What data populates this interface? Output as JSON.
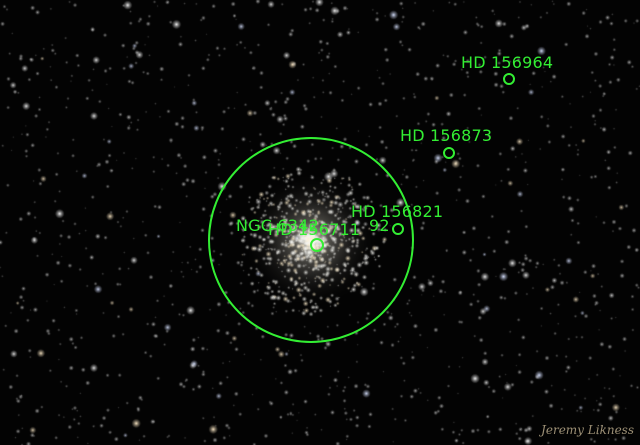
{
  "image": {
    "subject": "globular-star-cluster-field",
    "annotation_color": "#33ee33"
  },
  "annotations": {
    "cluster": "NGC 6342",
    "hd156964": "HD 156964",
    "hd156873": "HD 156873",
    "hd156821": "HD 156821",
    "hd156711": "HD 156711",
    "overlap_fragment": "92"
  },
  "credit": "Jeremy Likness"
}
